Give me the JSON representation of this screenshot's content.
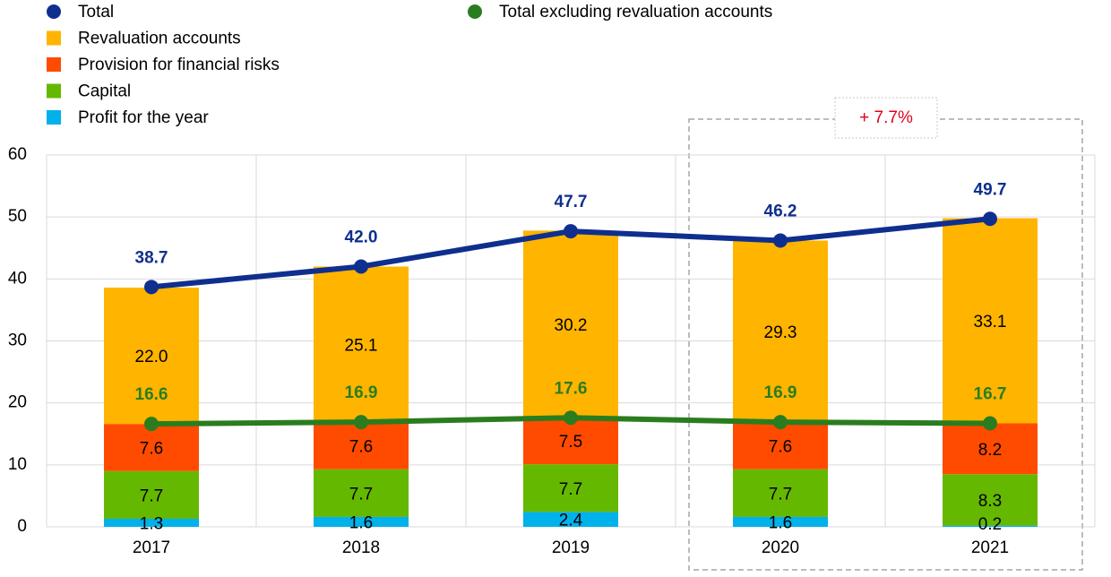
{
  "chart_data": {
    "type": "bar",
    "stacked": true,
    "categories": [
      "2017",
      "2018",
      "2019",
      "2020",
      "2021"
    ],
    "series": [
      {
        "name": "Total",
        "type": "line",
        "color": "#0f2f8f",
        "values": [
          38.7,
          42.0,
          47.7,
          46.2,
          49.7
        ],
        "value_labels": [
          "38.7",
          "42.0",
          "47.7",
          "46.2",
          "49.7"
        ]
      },
      {
        "name": "Revaluation accounts",
        "type": "bar",
        "color": "#ffb400",
        "values": [
          22.0,
          25.1,
          30.2,
          29.3,
          33.1
        ],
        "value_labels": [
          "22.0",
          "25.1",
          "30.2",
          "29.3",
          "33.1"
        ]
      },
      {
        "name": "Provision for financial risks",
        "type": "bar",
        "color": "#ff4b00",
        "values": [
          7.6,
          7.6,
          7.5,
          7.6,
          8.2
        ]
      },
      {
        "name": "Capital",
        "type": "bar",
        "color": "#65b800",
        "values": [
          7.7,
          7.7,
          7.7,
          7.7,
          8.3
        ]
      },
      {
        "name": "Profit for the year",
        "type": "bar",
        "color": "#00b1ea",
        "values": [
          1.3,
          1.6,
          2.4,
          1.6,
          0.2
        ]
      },
      {
        "name": "Total excluding revaluation accounts",
        "type": "line",
        "color": "#2a7d1e",
        "values": [
          16.6,
          16.9,
          17.6,
          16.9,
          16.7
        ]
      }
    ],
    "annotation": "+ 7.7%",
    "ylim": [
      0,
      60
    ],
    "yticks": [
      0,
      10,
      20,
      30,
      40,
      50,
      60
    ],
    "grid": true
  }
}
